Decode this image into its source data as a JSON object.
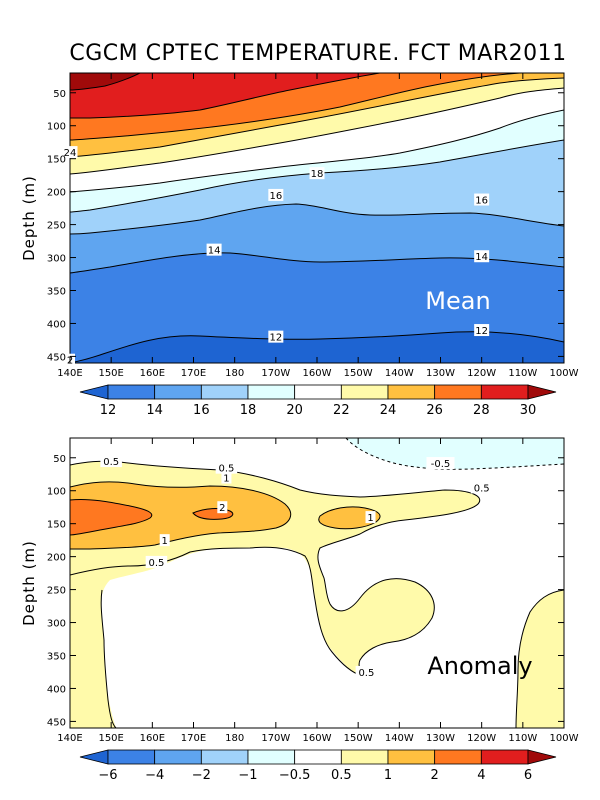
{
  "chart_data": [
    {
      "type": "heatmap",
      "title": "CGCM CPTEC TEMPERATURE. FCT MAR2011",
      "panel_label": "Mean",
      "ylabel": "Depth (m)",
      "xlabel": "",
      "x_ticks": [
        "140E",
        "150E",
        "160E",
        "170E",
        "180",
        "170W",
        "160W",
        "150W",
        "140W",
        "130W",
        "120W",
        "110W",
        "100W"
      ],
      "y_ticks": [
        50,
        100,
        150,
        200,
        250,
        300,
        350,
        400,
        450
      ],
      "ylim": [
        460,
        20
      ],
      "colorbar": {
        "labels": [
          "12",
          "14",
          "16",
          "18",
          "20",
          "22",
          "24",
          "26",
          "28",
          "30"
        ],
        "colors": [
          "#1e64d2",
          "#3c82e6",
          "#5fa5f0",
          "#a0d2fa",
          "#e1ffff",
          "#ffffff",
          "#fffaaa",
          "#ffc040",
          "#ff7820",
          "#e11e1e",
          "#a00a0a"
        ]
      },
      "contour_labels": [
        {
          "value": "24",
          "lon": "140E",
          "depth": 140
        },
        {
          "value": "18",
          "lon": "160W",
          "depth": 172
        },
        {
          "value": "16",
          "lon": "170W",
          "depth": 205
        },
        {
          "value": "16",
          "lon": "120W",
          "depth": 212
        },
        {
          "value": "14",
          "lon": "175E",
          "depth": 288
        },
        {
          "value": "14",
          "lon": "120W",
          "depth": 298
        },
        {
          "value": "12",
          "lon": "170W",
          "depth": 420
        },
        {
          "value": "12",
          "lon": "120W",
          "depth": 410
        },
        {
          "value": "2",
          "lon": "140E",
          "depth": 455
        }
      ]
    },
    {
      "type": "heatmap",
      "title": "",
      "panel_label": "Anomaly",
      "ylabel": "Depth (m)",
      "xlabel": "",
      "x_ticks": [
        "140E",
        "150E",
        "160E",
        "170E",
        "180",
        "170W",
        "160W",
        "150W",
        "140W",
        "130W",
        "120W",
        "110W",
        "100W"
      ],
      "y_ticks": [
        50,
        100,
        150,
        200,
        250,
        300,
        350,
        400,
        450
      ],
      "ylim": [
        460,
        20
      ],
      "colorbar": {
        "labels": [
          "−6",
          "−4",
          "−2",
          "−1",
          "−0.5",
          "0.5",
          "1",
          "2",
          "4",
          "6"
        ],
        "colors": [
          "#1e64d2",
          "#3c82e6",
          "#5fa5f0",
          "#a0d2fa",
          "#e1ffff",
          "#ffffff",
          "#fffaaa",
          "#ffc040",
          "#ff7820",
          "#e11e1e",
          "#a00a0a"
        ]
      },
      "contour_labels": [
        {
          "value": "-0.5",
          "lon": "130W",
          "depth": 58
        },
        {
          "value": "0.5",
          "lon": "150E",
          "depth": 55
        },
        {
          "value": "0.5",
          "lon": "178E",
          "depth": 65
        },
        {
          "value": "1",
          "lon": "178E",
          "depth": 80
        },
        {
          "value": "2",
          "lon": "177E",
          "depth": 125
        },
        {
          "value": "0.5",
          "lon": "120W",
          "depth": 95
        },
        {
          "value": "1",
          "lon": "147W",
          "depth": 140
        },
        {
          "value": "1",
          "lon": "163E",
          "depth": 175
        },
        {
          "value": "0.5",
          "lon": "161E",
          "depth": 208
        },
        {
          "value": "0.5",
          "lon": "148W",
          "depth": 375
        }
      ]
    }
  ]
}
